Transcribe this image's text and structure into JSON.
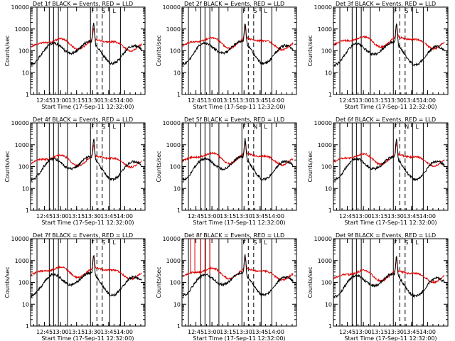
{
  "chart_data": [
    {
      "type": "line",
      "title": "Det 1f BLACK = Events, RED = LLD",
      "xlabel": "Start Time (17-Sep-11 12:32:00)",
      "ylabel": "Counts/sec",
      "x_ticks": [
        "12:45",
        "13:00",
        "13:15",
        "13:30",
        "13:45",
        "14:00"
      ],
      "y_ticks": [
        "1",
        "10",
        "100",
        "1000",
        "10000"
      ],
      "yscale": "log",
      "ylim": [
        1,
        10000
      ],
      "markers": [
        "F",
        "S",
        "L"
      ],
      "series": [
        {
          "name": "Events",
          "color": "#000000"
        },
        {
          "name": "LLD",
          "color": "#e00000"
        }
      ]
    },
    {
      "type": "line",
      "title": "Det 2f BLACK = Events, RED = LLD",
      "xlabel": "Start Time (17-Sep-11 12:32:00)",
      "ylabel": "Counts/sec",
      "x_ticks": [
        "12:45",
        "13:00",
        "13:15",
        "13:30",
        "13:45",
        "14:00"
      ],
      "y_ticks": [
        "1",
        "10",
        "100",
        "1000",
        "10000"
      ],
      "yscale": "log",
      "ylim": [
        1,
        10000
      ],
      "markers": [
        "F",
        "S",
        "L"
      ],
      "series": [
        {
          "name": "Events",
          "color": "#000000"
        },
        {
          "name": "LLD",
          "color": "#e00000"
        }
      ]
    },
    {
      "type": "line",
      "title": "Det 3f BLACK = Events, RED = LLD",
      "xlabel": "Start Time (17-Sep-11 12:32:00)",
      "ylabel": "Counts/sec",
      "x_ticks": [
        "12:45",
        "13:00",
        "13:15",
        "13:30",
        "13:45",
        "14:00"
      ],
      "y_ticks": [
        "1",
        "10",
        "100",
        "1000",
        "10000"
      ],
      "yscale": "log",
      "ylim": [
        1,
        10000
      ],
      "markers": [
        "F",
        "S",
        "L"
      ],
      "series": [
        {
          "name": "Events",
          "color": "#000000"
        },
        {
          "name": "LLD",
          "color": "#e00000"
        }
      ]
    },
    {
      "type": "line",
      "title": "Det 4f BLACK = Events, RED = LLD",
      "xlabel": "Start Time (17-Sep-11 12:32:00)",
      "ylabel": "Counts/sec",
      "x_ticks": [
        "12:45",
        "13:00",
        "13:15",
        "13:30",
        "13:45",
        "14:00"
      ],
      "y_ticks": [
        "1",
        "10",
        "100",
        "1000",
        "10000"
      ],
      "yscale": "log",
      "ylim": [
        1,
        10000
      ],
      "markers": [
        "F",
        "S",
        "L"
      ],
      "series": [
        {
          "name": "Events",
          "color": "#000000"
        },
        {
          "name": "LLD",
          "color": "#e00000"
        }
      ]
    },
    {
      "type": "line",
      "title": "Det 5f BLACK = Events, RED = LLD",
      "xlabel": "Start Time (17-Sep-11 12:32:00)",
      "ylabel": "Counts/sec",
      "x_ticks": [
        "12:45",
        "13:00",
        "13:15",
        "13:30",
        "13:45",
        "14:00"
      ],
      "y_ticks": [
        "1",
        "10",
        "100",
        "1000",
        "10000"
      ],
      "yscale": "log",
      "ylim": [
        1,
        10000
      ],
      "markers": [
        "F",
        "N",
        "L"
      ],
      "series": [
        {
          "name": "Events",
          "color": "#000000"
        },
        {
          "name": "LLD",
          "color": "#e00000"
        }
      ]
    },
    {
      "type": "line",
      "title": "Det 6f BLACK = Events, RED = LLD",
      "xlabel": "Start Time (17-Sep-11 12:32:00)",
      "ylabel": "Counts/sec",
      "x_ticks": [
        "12:45",
        "13:00",
        "13:15",
        "13:30",
        "13:45",
        "14:00"
      ],
      "y_ticks": [
        "1",
        "10",
        "100",
        "1000",
        "10000"
      ],
      "yscale": "log",
      "ylim": [
        1,
        10000
      ],
      "markers": [
        "F",
        "N",
        "L"
      ],
      "series": [
        {
          "name": "Events",
          "color": "#000000"
        },
        {
          "name": "LLD",
          "color": "#e00000"
        }
      ]
    },
    {
      "type": "line",
      "title": "Det 7f BLACK = Events, RED = LLD",
      "xlabel": "Start Time (17-Sep-11 12:32:00)",
      "ylabel": "Counts/sec",
      "x_ticks": [
        "12:45",
        "13:00",
        "13:15",
        "13:30",
        "13:45",
        "14:00"
      ],
      "y_ticks": [
        "1",
        "10",
        "100",
        "1000",
        "10000"
      ],
      "yscale": "log",
      "ylim": [
        1,
        10000
      ],
      "markers": [
        "F",
        "S",
        "L"
      ],
      "series": [
        {
          "name": "Events",
          "color": "#000000"
        },
        {
          "name": "LLD",
          "color": "#e00000"
        }
      ]
    },
    {
      "type": "line",
      "title": "Det 8f BLACK = Events, RED = LLD",
      "xlabel": "Start Time (17-Sep-11 12:32:00)",
      "ylabel": "Counts/sec",
      "x_ticks": [
        "12:45",
        "13:00",
        "13:15",
        "13:30",
        "13:45",
        "14:00"
      ],
      "y_ticks": [
        "1",
        "10",
        "100",
        "1000",
        "10000"
      ],
      "yscale": "log",
      "ylim": [
        1,
        10000
      ],
      "markers": [
        "F",
        "S",
        "L"
      ],
      "series": [
        {
          "name": "Events",
          "color": "#000000"
        },
        {
          "name": "LLD",
          "color": "#e00000"
        }
      ]
    },
    {
      "type": "line",
      "title": "Det 9f BLACK = Events, RED = LLD",
      "xlabel": "Start Time (17-Sep-11 12:32:00)",
      "ylabel": "Counts/sec",
      "x_ticks": [
        "12:45",
        "13:00",
        "13:15",
        "13:30",
        "13:45",
        "14:00"
      ],
      "y_ticks": [
        "1",
        "10",
        "100",
        "1000",
        "10000"
      ],
      "yscale": "log",
      "ylim": [
        1,
        10000
      ],
      "markers": [
        "F",
        "S",
        "L"
      ],
      "series": [
        {
          "name": "Events",
          "color": "#000000"
        },
        {
          "name": "LLD",
          "color": "#e00000"
        }
      ]
    }
  ]
}
